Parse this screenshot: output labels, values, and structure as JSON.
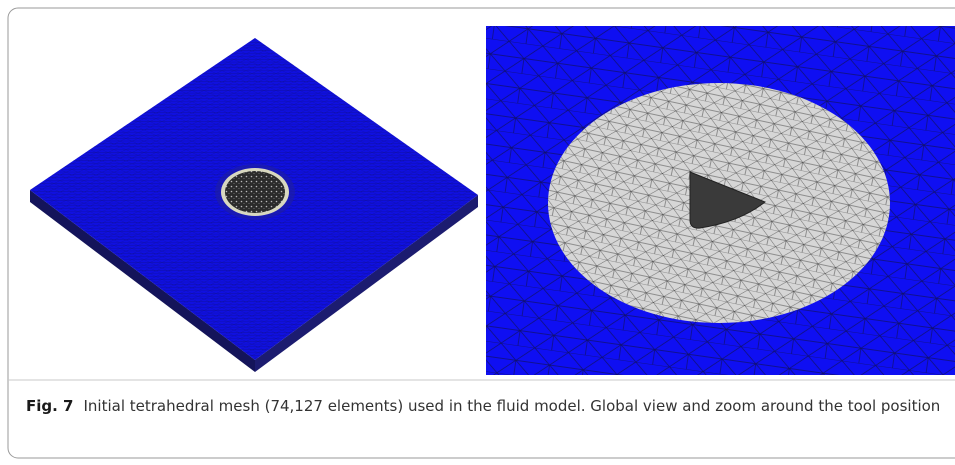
{
  "figure": {
    "label": "Fig. 7",
    "caption": "Initial tetrahedral mesh (74,127 elements) used in the fluid model. Global view and zoom around the tool position"
  }
}
